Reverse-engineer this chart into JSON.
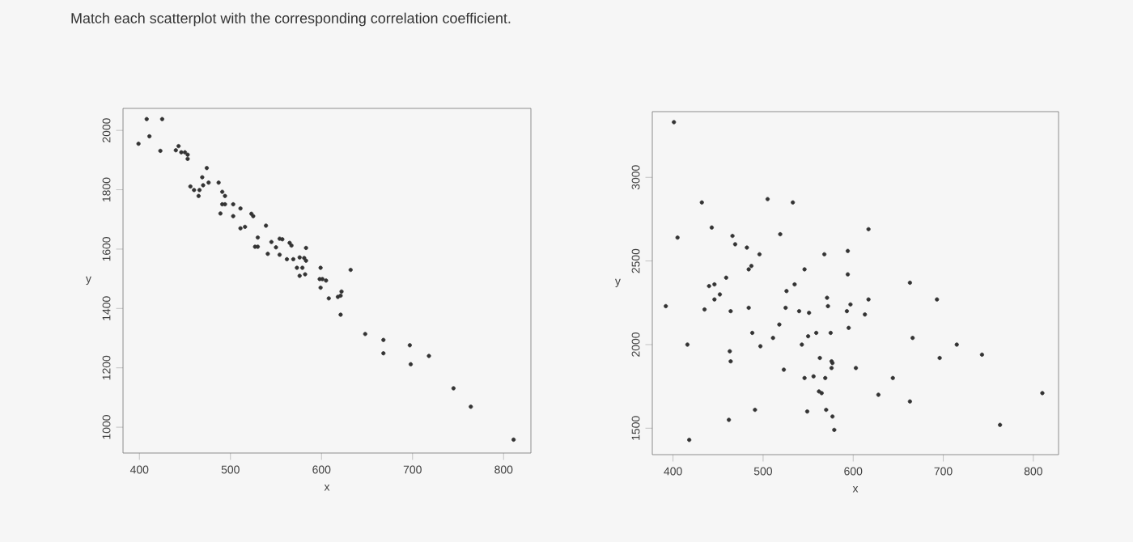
{
  "chart_data": [
    {
      "type": "scatter",
      "title": "Match each scatterplot with the corresponding correlation coefficient.",
      "xlabel": "x",
      "ylabel": "y",
      "xlim": [
        382,
        830
      ],
      "ylim": [
        913,
        2074
      ],
      "xticks": [
        400,
        500,
        600,
        700,
        800
      ],
      "yticks": [
        1000,
        1200,
        1400,
        1600,
        1800,
        2000
      ],
      "grid": false,
      "series": [
        {
          "color": "#333333",
          "x": [
            408,
            425,
            411,
            399,
            423,
            440,
            443,
            446,
            450,
            453,
            453,
            474,
            469,
            476,
            487,
            456,
            460,
            470,
            466,
            465,
            491,
            494,
            491,
            494,
            503,
            511,
            489,
            503,
            523,
            525,
            516,
            511,
            539,
            530,
            527,
            530,
            545,
            554,
            557,
            550,
            554,
            541,
            565,
            567,
            583,
            562,
            569,
            576,
            581,
            583,
            573,
            579,
            582,
            576,
            599,
            598,
            601,
            605,
            632,
            599,
            608,
            618,
            621,
            622,
            621,
            648,
            668,
            668,
            697,
            698,
            718,
            745,
            764,
            811
          ],
          "values": [
            2038,
            2038,
            1980,
            1955,
            1931,
            1933,
            1947,
            1926,
            1926,
            1918,
            1904,
            1873,
            1842,
            1824,
            1824,
            1811,
            1799,
            1815,
            1799,
            1779,
            1793,
            1779,
            1751,
            1751,
            1751,
            1737,
            1720,
            1711,
            1719,
            1711,
            1675,
            1670,
            1679,
            1639,
            1608,
            1608,
            1624,
            1635,
            1633,
            1606,
            1581,
            1584,
            1621,
            1612,
            1604,
            1566,
            1566,
            1572,
            1570,
            1561,
            1537,
            1537,
            1515,
            1510,
            1537,
            1499,
            1499,
            1494,
            1530,
            1470,
            1434,
            1439,
            1443,
            1457,
            1379,
            1314,
            1294,
            1249,
            1276,
            1212,
            1240,
            1131,
            1069,
            958
          ]
        }
      ]
    },
    {
      "type": "scatter",
      "xlabel": "x",
      "ylabel": "y",
      "xlim": [
        377,
        828
      ],
      "ylim": [
        1342,
        3393
      ],
      "xticks": [
        400,
        500,
        600,
        700,
        800
      ],
      "yticks": [
        1500,
        2000,
        2500,
        3000
      ],
      "grid": false,
      "series": [
        {
          "color": "#333333",
          "x": [
            401,
            392,
            405,
            416,
            418,
            432,
            435,
            440,
            443,
            446,
            446,
            452,
            459,
            462,
            463,
            464,
            464,
            466,
            469,
            482,
            484,
            487,
            484,
            488,
            491,
            496,
            497,
            505,
            511,
            519,
            518,
            523,
            525,
            526,
            533,
            535,
            540,
            543,
            546,
            546,
            549,
            550,
            551,
            556,
            559,
            562,
            565,
            563,
            568,
            569,
            571,
            572,
            570,
            575,
            576,
            577,
            576,
            577,
            579,
            593,
            594,
            594,
            595,
            597,
            603,
            613,
            617,
            617,
            628,
            644,
            663,
            666,
            663,
            693,
            696,
            715,
            743,
            763,
            810
          ],
          "values": [
            3330,
            2230,
            2640,
            2000,
            1430,
            2850,
            2210,
            2350,
            2700,
            2360,
            2270,
            2300,
            2400,
            1550,
            1960,
            1900,
            2200,
            2650,
            2600,
            2580,
            2450,
            2470,
            2220,
            2070,
            1610,
            2540,
            1990,
            2870,
            2040,
            2660,
            2120,
            1850,
            2220,
            2320,
            2850,
            2360,
            2200,
            2000,
            2450,
            1800,
            1600,
            2050,
            2190,
            1810,
            2070,
            1720,
            1710,
            1920,
            2540,
            1800,
            2280,
            2230,
            1610,
            2070,
            1900,
            1890,
            1860,
            1570,
            1490,
            2200,
            2560,
            2420,
            2100,
            2240,
            1860,
            2180,
            2690,
            2270,
            1700,
            1800,
            2370,
            2040,
            1660,
            2270,
            1920,
            2000,
            1940,
            1520,
            1710
          ]
        }
      ]
    }
  ]
}
